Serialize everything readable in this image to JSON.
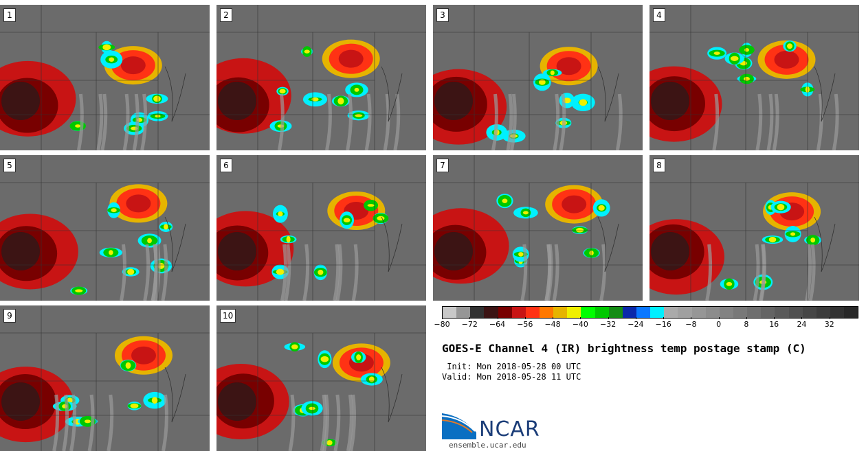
{
  "panels": [
    {
      "label": "1"
    },
    {
      "label": "2"
    },
    {
      "label": "3"
    },
    {
      "label": "4"
    },
    {
      "label": "5"
    },
    {
      "label": "6"
    },
    {
      "label": "7"
    },
    {
      "label": "8"
    },
    {
      "label": "9"
    },
    {
      "label": "10"
    }
  ],
  "colorbar": {
    "colors": [
      "#c8c8c8",
      "#969696",
      "#323232",
      "#3c1414",
      "#780000",
      "#c81414",
      "#ff3214",
      "#ff7800",
      "#e6b400",
      "#f0f000",
      "#00ff00",
      "#00c800",
      "#148c14",
      "#0a28aa",
      "#0a78ff",
      "#00f0ff",
      "#aaaaaa",
      "#a0a0a0",
      "#969696",
      "#8c8c8c",
      "#828282",
      "#787878",
      "#6e6e6e",
      "#646464",
      "#5a5a5a",
      "#505050",
      "#464646",
      "#3c3c3c",
      "#323232",
      "#282828"
    ],
    "tick_labels": [
      "−80",
      "−72",
      "−64",
      "−56",
      "−48",
      "−40",
      "−32",
      "−24",
      "−16",
      "−8",
      "0",
      "8",
      "16",
      "24",
      "32"
    ]
  },
  "title": "GOES-E Channel 4 (IR) brightness temp postage stamp (C)",
  "init": " Init: Mon 2018-05-28 00 UTC",
  "valid": "Valid: Mon 2018-05-28 11 UTC",
  "logo": {
    "name": "NCAR",
    "url": "ensemble.ucar.edu"
  }
}
